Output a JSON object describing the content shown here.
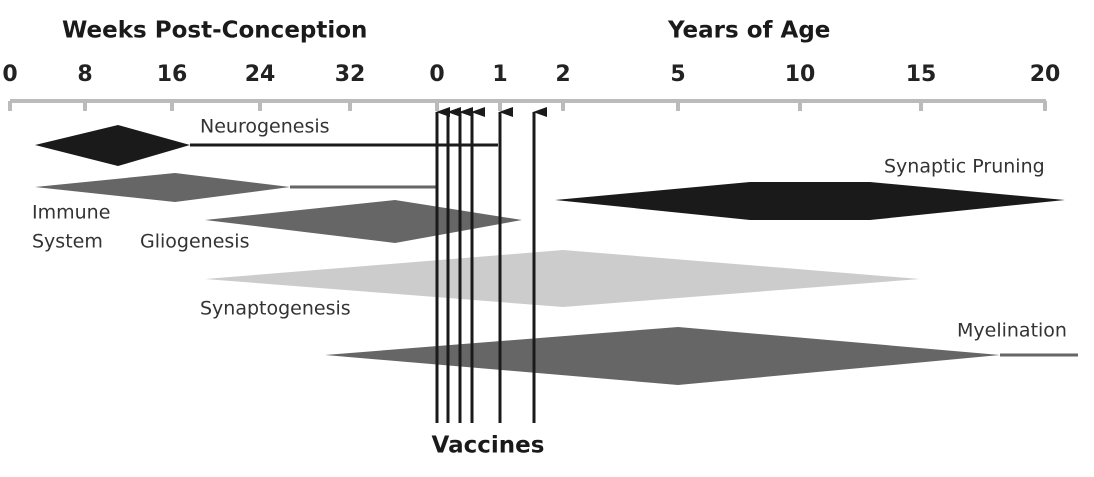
{
  "header": {
    "left_title": "Weeks Post-Conception",
    "right_title": "Years of Age"
  },
  "axis": {
    "ticks": [
      "0",
      "8",
      "16",
      "24",
      "32",
      "0",
      "1",
      "2",
      "5",
      "10",
      "15",
      "20"
    ]
  },
  "processes": [
    {
      "lines": [
        "Neurogenesis"
      ]
    },
    {
      "lines": [
        "Immune",
        "System"
      ]
    },
    {
      "lines": [
        "Gliogenesis"
      ]
    },
    {
      "lines": [
        "Synaptogenesis"
      ]
    },
    {
      "lines": [
        "Synaptic Pruning"
      ]
    },
    {
      "lines": [
        "Myelination"
      ]
    }
  ],
  "vaccines": {
    "label": "Vaccines"
  }
}
